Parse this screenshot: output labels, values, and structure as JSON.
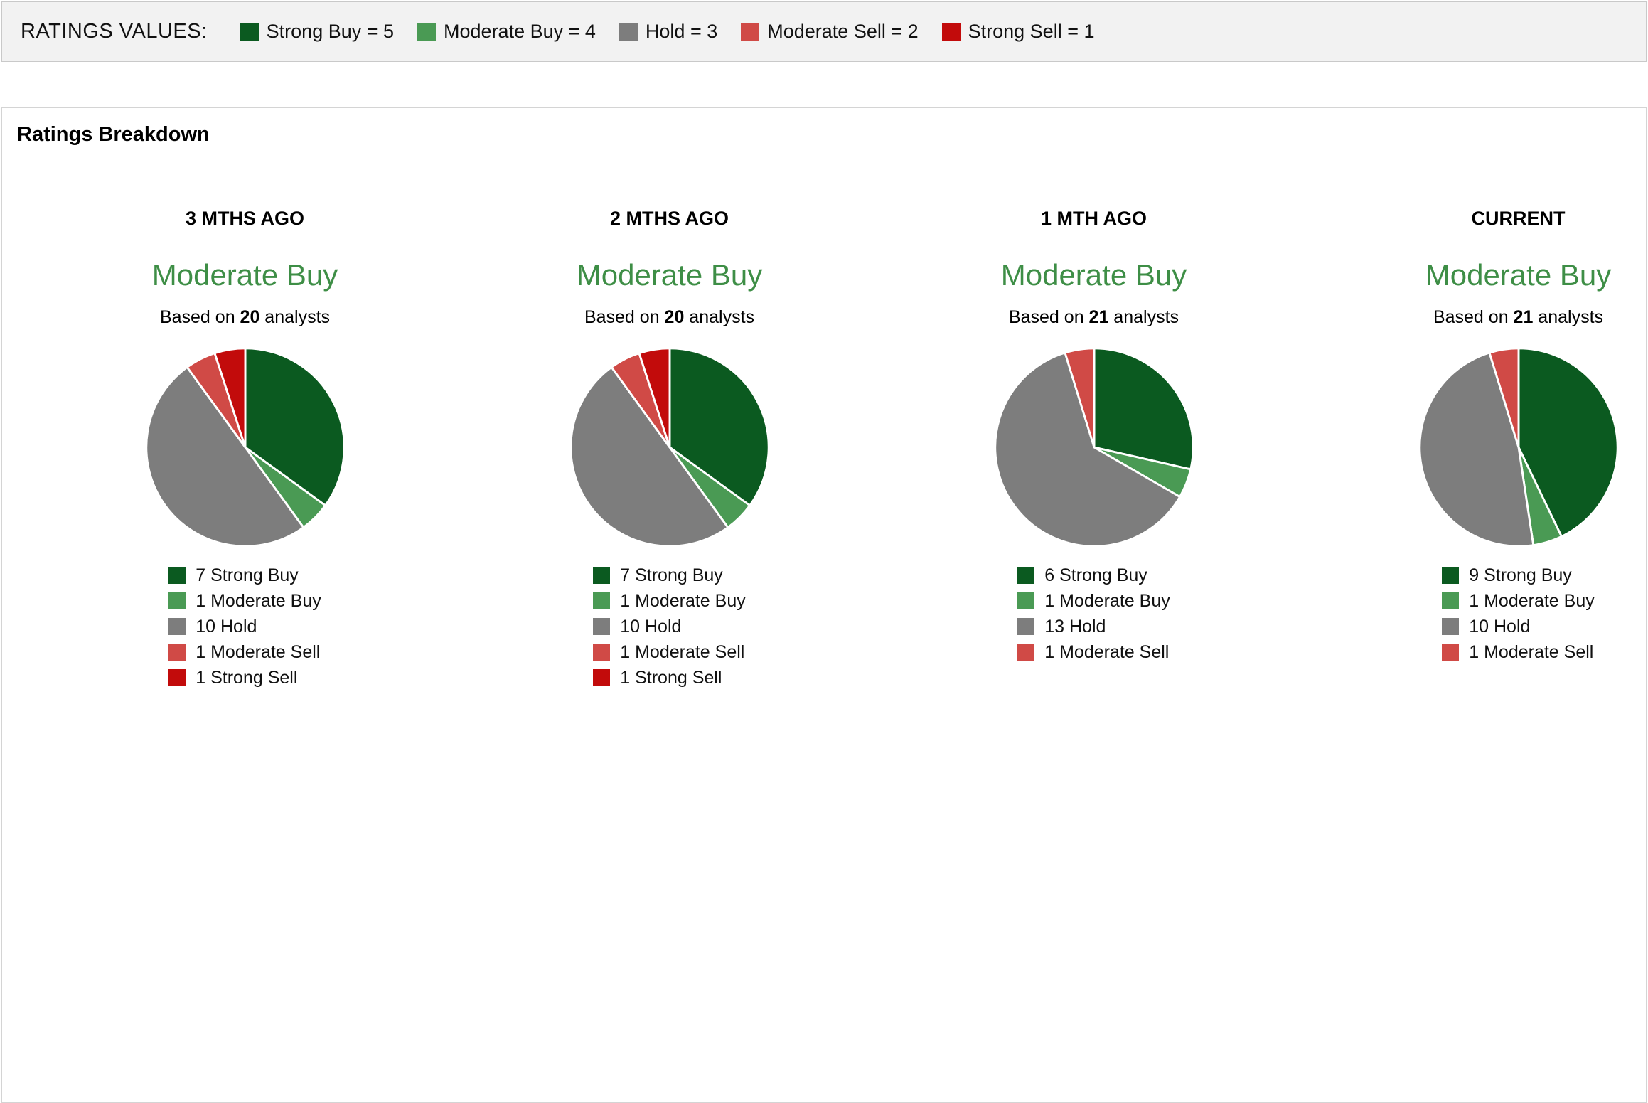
{
  "ratings_values_bar": {
    "label": "RATINGS VALUES:",
    "items": [
      {
        "label": "Strong Buy = 5",
        "color": "#0b5a20"
      },
      {
        "label": "Moderate Buy = 4",
        "color": "#4a9a54"
      },
      {
        "label": "Hold = 3",
        "color": "#7d7d7d"
      },
      {
        "label": "Moderate Sell = 2",
        "color": "#d04a46"
      },
      {
        "label": "Strong Sell = 1",
        "color": "#c20b0b"
      }
    ]
  },
  "panel": {
    "title": "Ratings Breakdown"
  },
  "consensus_text_color": "#3e8e46",
  "slice_colors": [
    "#0b5a20",
    "#4a9a54",
    "#7d7d7d",
    "#d04a46",
    "#c20b0b"
  ],
  "chart_data": [
    {
      "type": "pie",
      "period": "3 MTHS AGO",
      "consensus": "Moderate Buy",
      "based_on": {
        "prefix": "Based on",
        "count": "20",
        "suffix": "analysts"
      },
      "categories": [
        "Strong Buy",
        "Moderate Buy",
        "Hold",
        "Moderate Sell",
        "Strong Sell"
      ],
      "values": [
        7,
        1,
        10,
        1,
        1
      ],
      "legend_labels": [
        "7 Strong Buy",
        "1 Moderate Buy",
        "10 Hold",
        "1 Moderate Sell",
        "1 Strong Sell"
      ]
    },
    {
      "type": "pie",
      "period": "2 MTHS AGO",
      "consensus": "Moderate Buy",
      "based_on": {
        "prefix": "Based on",
        "count": "20",
        "suffix": "analysts"
      },
      "categories": [
        "Strong Buy",
        "Moderate Buy",
        "Hold",
        "Moderate Sell",
        "Strong Sell"
      ],
      "values": [
        7,
        1,
        10,
        1,
        1
      ],
      "legend_labels": [
        "7 Strong Buy",
        "1 Moderate Buy",
        "10 Hold",
        "1 Moderate Sell",
        "1 Strong Sell"
      ]
    },
    {
      "type": "pie",
      "period": "1 MTH AGO",
      "consensus": "Moderate Buy",
      "based_on": {
        "prefix": "Based on",
        "count": "21",
        "suffix": "analysts"
      },
      "categories": [
        "Strong Buy",
        "Moderate Buy",
        "Hold",
        "Moderate Sell",
        "Strong Sell"
      ],
      "values": [
        6,
        1,
        13,
        1,
        0
      ],
      "legend_labels": [
        "6 Strong Buy",
        "1 Moderate Buy",
        "13 Hold",
        "1 Moderate Sell"
      ]
    },
    {
      "type": "pie",
      "period": "CURRENT",
      "consensus": "Moderate Buy",
      "based_on": {
        "prefix": "Based on",
        "count": "21",
        "suffix": "analysts"
      },
      "categories": [
        "Strong Buy",
        "Moderate Buy",
        "Hold",
        "Moderate Sell",
        "Strong Sell"
      ],
      "values": [
        9,
        1,
        10,
        1,
        0
      ],
      "legend_labels": [
        "9 Strong Buy",
        "1 Moderate Buy",
        "10 Hold",
        "1 Moderate Sell"
      ]
    }
  ]
}
